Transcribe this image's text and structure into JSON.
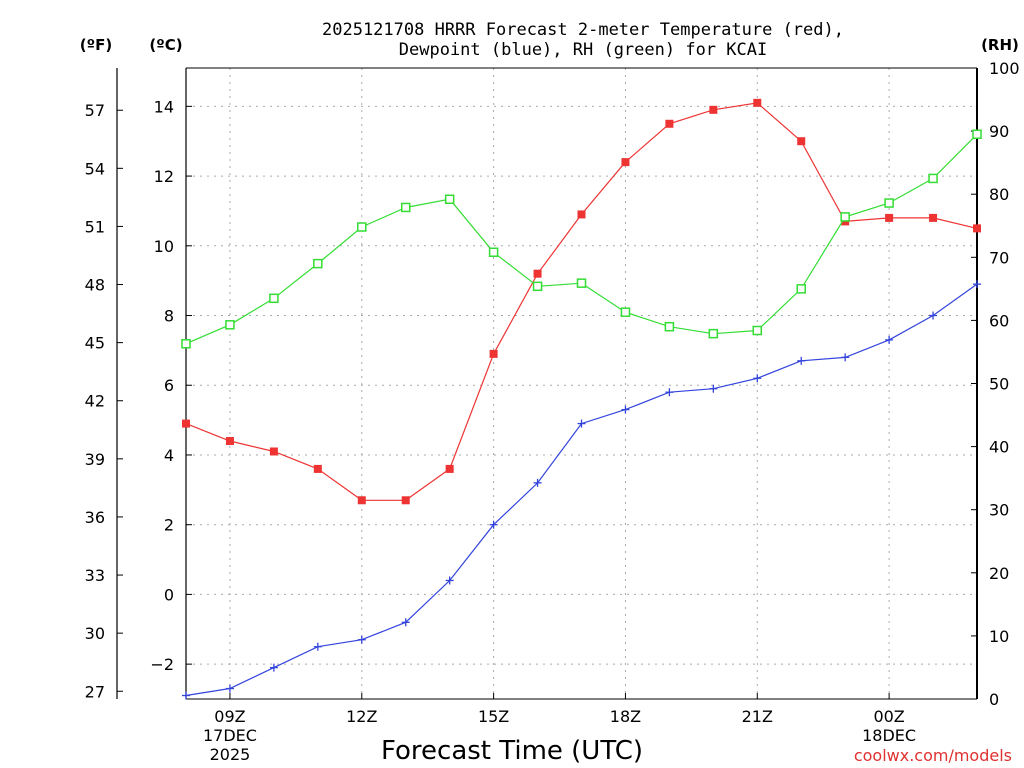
{
  "chart_data": {
    "type": "line",
    "title_line1": "2025121708 HRRR Forecast 2-meter Temperature (red),",
    "title_line2": "Dewpoint (blue), RH (green) for KCAI",
    "xlabel": "Forecast Time (UTC)",
    "credit": "coolwx.com/models",
    "unit_f": "(ºF)",
    "unit_c": "(ºC)",
    "unit_rh": "(RH)",
    "x_hours": [
      8,
      9,
      10,
      11,
      12,
      13,
      14,
      15,
      16,
      17,
      18,
      19,
      20,
      21,
      22,
      23,
      24,
      25,
      26
    ],
    "xlim": [
      8,
      26
    ],
    "x_ticks": [
      {
        "hour": 9,
        "label": "09Z",
        "date": "17DEC",
        "year": "2025"
      },
      {
        "hour": 12,
        "label": "12Z",
        "date": "",
        "year": ""
      },
      {
        "hour": 15,
        "label": "15Z",
        "date": "",
        "year": ""
      },
      {
        "hour": 18,
        "label": "18Z",
        "date": "",
        "year": ""
      },
      {
        "hour": 21,
        "label": "21Z",
        "date": "",
        "year": ""
      },
      {
        "hour": 24,
        "label": "00Z",
        "date": "18DEC",
        "year": ""
      }
    ],
    "ylim_c": [
      -3,
      15.1
    ],
    "ylim_rh": [
      0,
      100
    ],
    "y_ticks_c": [
      -2,
      0,
      2,
      4,
      6,
      8,
      10,
      12,
      14
    ],
    "y_ticks_f": [
      27,
      30,
      33,
      36,
      39,
      42,
      45,
      48,
      51,
      54,
      57
    ],
    "y_ticks_rh": [
      0,
      10,
      20,
      30,
      40,
      50,
      60,
      70,
      80,
      90,
      100
    ],
    "series": [
      {
        "name": "Temperature",
        "color": "#ee3333",
        "marker": "filled-square",
        "axis": "c",
        "values": [
          4.9,
          4.4,
          4.1,
          3.6,
          2.7,
          2.7,
          3.6,
          6.9,
          9.2,
          10.9,
          12.4,
          13.5,
          13.9,
          14.1,
          13.0,
          10.7,
          10.8,
          10.8,
          10.5
        ]
      },
      {
        "name": "Dewpoint",
        "color": "#3344dd",
        "marker": "plus",
        "axis": "c",
        "values": [
          -2.9,
          -2.7,
          -2.1,
          -1.5,
          -1.3,
          -0.8,
          0.4,
          2.0,
          3.2,
          4.9,
          5.3,
          5.8,
          5.9,
          6.2,
          6.7,
          6.8,
          7.3,
          8.0,
          8.9
        ]
      },
      {
        "name": "RH",
        "color": "#33dd33",
        "marker": "open-square",
        "axis": "rh",
        "values": [
          56.3,
          59.3,
          63.5,
          69.0,
          74.8,
          77.9,
          79.2,
          70.8,
          65.4,
          65.9,
          61.3,
          59.0,
          57.9,
          58.4,
          65.0,
          76.4,
          78.6,
          82.5,
          89.5
        ]
      }
    ]
  }
}
